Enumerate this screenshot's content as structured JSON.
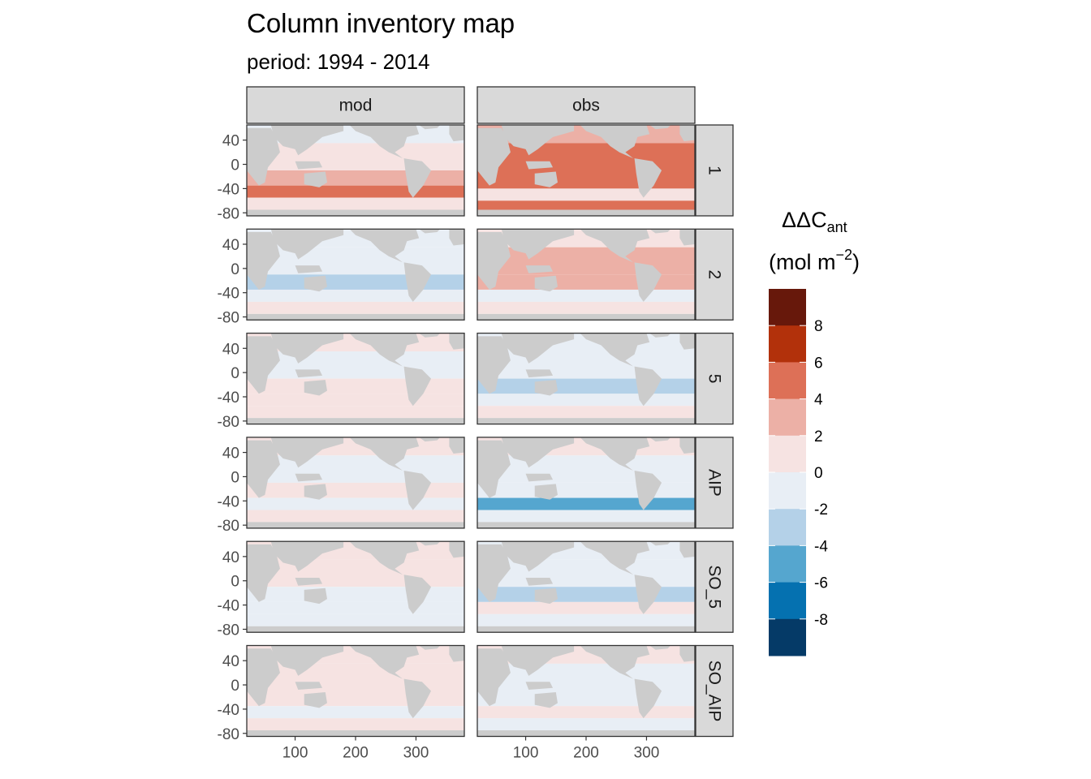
{
  "title": "Column inventory map",
  "subtitle": "period: 1994 - 2014",
  "chart_data": {
    "type": "heatmap",
    "title": "Column inventory map",
    "subtitle": "period: 1994 - 2014",
    "xlabel": "",
    "ylabel": "",
    "column_facets": [
      "mod",
      "obs"
    ],
    "row_facets": [
      "1",
      "2",
      "5",
      "AIP",
      "SO_5",
      "SO_AIP"
    ],
    "x_ticks": [
      "100",
      "200",
      "300"
    ],
    "x_tick_values": [
      100,
      200,
      300
    ],
    "x_range": [
      20,
      380
    ],
    "y_ticks": [
      "40",
      "0",
      "-40",
      "-80"
    ],
    "y_tick_values": [
      40,
      0,
      -40,
      -80
    ],
    "y_range": [
      -85,
      65
    ],
    "legend": {
      "title_main": "ΔΔC",
      "title_sub": "ant",
      "unit_prefix": "(mol m",
      "unit_sup": "−2",
      "unit_suffix": ")",
      "labels": [
        "8",
        "6",
        "4",
        "2",
        "0",
        "-2",
        "-4",
        "-6",
        "-8"
      ],
      "bin_colors": [
        "#67180b",
        "#b2310b",
        "#dd7057",
        "#ecb0a6",
        "#f6e3e2",
        "#e8eef5",
        "#b4d1e8",
        "#55a6cf",
        "#0571b0",
        "#053a67"
      ],
      "placement": "right"
    },
    "land_color": "#cccccc",
    "panels": [
      {
        "row": "1",
        "col": "mod",
        "bands": [
          {
            "lat": [
              35,
              65
            ],
            "value": -0.5
          },
          {
            "lat": [
              -10,
              35
            ],
            "value": 0.8
          },
          {
            "lat": [
              -35,
              -10
            ],
            "value": 2.4
          },
          {
            "lat": [
              -55,
              -35
            ],
            "value": 5.0
          },
          {
            "lat": [
              -75,
              -55
            ],
            "value": 1.0
          }
        ]
      },
      {
        "row": "1",
        "col": "obs",
        "bands": [
          {
            "lat": [
              35,
              65
            ],
            "value": 2.0
          },
          {
            "lat": [
              -10,
              35
            ],
            "value": 4.4
          },
          {
            "lat": [
              -40,
              -10
            ],
            "value": 4.8
          },
          {
            "lat": [
              -60,
              -40
            ],
            "value": 1.0
          },
          {
            "lat": [
              -75,
              -60
            ],
            "value": 5.4
          }
        ]
      },
      {
        "row": "2",
        "col": "mod",
        "bands": [
          {
            "lat": [
              35,
              65
            ],
            "value": -0.5
          },
          {
            "lat": [
              -10,
              35
            ],
            "value": -0.8
          },
          {
            "lat": [
              -35,
              -10
            ],
            "value": -2.5
          },
          {
            "lat": [
              -55,
              -35
            ],
            "value": -0.6
          },
          {
            "lat": [
              -75,
              -55
            ],
            "value": 0.4
          }
        ]
      },
      {
        "row": "2",
        "col": "obs",
        "bands": [
          {
            "lat": [
              35,
              65
            ],
            "value": 0.8
          },
          {
            "lat": [
              -10,
              35
            ],
            "value": 2.2
          },
          {
            "lat": [
              -35,
              -10
            ],
            "value": 2.5
          },
          {
            "lat": [
              -55,
              -35
            ],
            "value": -1.0
          },
          {
            "lat": [
              -75,
              -55
            ],
            "value": 1.2
          }
        ]
      },
      {
        "row": "5",
        "col": "mod",
        "bands": [
          {
            "lat": [
              35,
              65
            ],
            "value": 0.4
          },
          {
            "lat": [
              -10,
              35
            ],
            "value": -0.4
          },
          {
            "lat": [
              -35,
              -10
            ],
            "value": 0.9
          },
          {
            "lat": [
              -55,
              -35
            ],
            "value": 0.6
          },
          {
            "lat": [
              -75,
              -55
            ],
            "value": 0.3
          }
        ]
      },
      {
        "row": "5",
        "col": "obs",
        "bands": [
          {
            "lat": [
              35,
              65
            ],
            "value": -0.6
          },
          {
            "lat": [
              -10,
              35
            ],
            "value": -1.2
          },
          {
            "lat": [
              -35,
              -10
            ],
            "value": -2.6
          },
          {
            "lat": [
              -55,
              -35
            ],
            "value": -1.0
          },
          {
            "lat": [
              -75,
              -55
            ],
            "value": 0.5
          }
        ]
      },
      {
        "row": "AIP",
        "col": "mod",
        "bands": [
          {
            "lat": [
              35,
              65
            ],
            "value": 0.4
          },
          {
            "lat": [
              -10,
              35
            ],
            "value": -0.3
          },
          {
            "lat": [
              -35,
              -10
            ],
            "value": 0.8
          },
          {
            "lat": [
              -55,
              -35
            ],
            "value": -1.5
          },
          {
            "lat": [
              -75,
              -55
            ],
            "value": 0.3
          }
        ]
      },
      {
        "row": "AIP",
        "col": "obs",
        "bands": [
          {
            "lat": [
              35,
              65
            ],
            "value": 0.8
          },
          {
            "lat": [
              -10,
              35
            ],
            "value": -0.7
          },
          {
            "lat": [
              -35,
              -10
            ],
            "value": -0.9
          },
          {
            "lat": [
              -55,
              -35
            ],
            "value": -4.5
          },
          {
            "lat": [
              -75,
              -55
            ],
            "value": -0.8
          }
        ]
      },
      {
        "row": "SO_5",
        "col": "mod",
        "bands": [
          {
            "lat": [
              35,
              65
            ],
            "value": 0.8
          },
          {
            "lat": [
              -10,
              35
            ],
            "value": 0.5
          },
          {
            "lat": [
              -35,
              -10
            ],
            "value": -0.4
          },
          {
            "lat": [
              -55,
              -35
            ],
            "value": -0.9
          },
          {
            "lat": [
              -75,
              -55
            ],
            "value": -0.3
          }
        ]
      },
      {
        "row": "SO_5",
        "col": "obs",
        "bands": [
          {
            "lat": [
              35,
              65
            ],
            "value": -1.2
          },
          {
            "lat": [
              -10,
              35
            ],
            "value": -1.4
          },
          {
            "lat": [
              -35,
              -10
            ],
            "value": -2.8
          },
          {
            "lat": [
              -55,
              -35
            ],
            "value": 1.8
          },
          {
            "lat": [
              -75,
              -55
            ],
            "value": -0.6
          }
        ]
      },
      {
        "row": "SO_AIP",
        "col": "mod",
        "bands": [
          {
            "lat": [
              35,
              65
            ],
            "value": 0.7
          },
          {
            "lat": [
              -10,
              35
            ],
            "value": 0.9
          },
          {
            "lat": [
              -35,
              -10
            ],
            "value": 0.4
          },
          {
            "lat": [
              -55,
              -35
            ],
            "value": -0.6
          },
          {
            "lat": [
              -75,
              -55
            ],
            "value": 0.3
          }
        ]
      },
      {
        "row": "SO_AIP",
        "col": "obs",
        "bands": [
          {
            "lat": [
              35,
              65
            ],
            "value": 0.5
          },
          {
            "lat": [
              -10,
              35
            ],
            "value": -0.4
          },
          {
            "lat": [
              -35,
              -10
            ],
            "value": -1.2
          },
          {
            "lat": [
              -55,
              -35
            ],
            "value": 1.6
          },
          {
            "lat": [
              -75,
              -55
            ],
            "value": -0.8
          }
        ]
      }
    ]
  }
}
